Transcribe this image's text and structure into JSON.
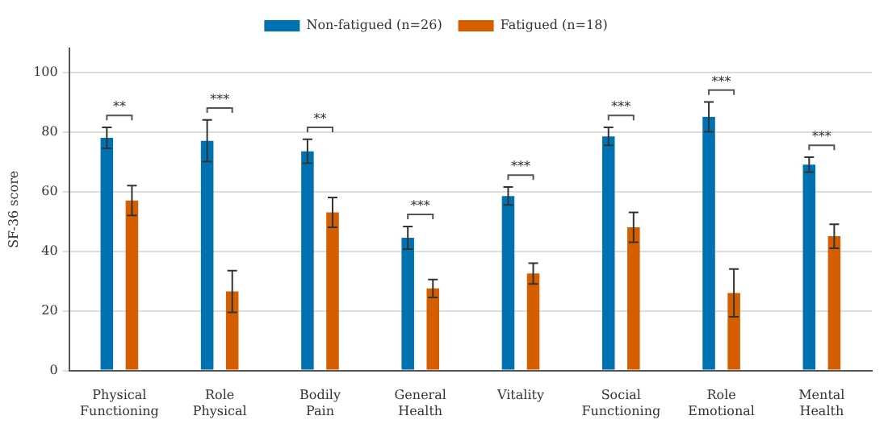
{
  "chart_data": {
    "type": "bar",
    "ylabel": "SF-36 score",
    "categories": [
      "Physical\nFunctioning",
      "Role\nPhysical",
      "Bodily\nPain",
      "General\nHealth",
      "Vitality",
      "Social\nFunctioning",
      "Role\nEmotional",
      "Mental\nHealth"
    ],
    "series": [
      {
        "name": "Non-fatigued (n=26)",
        "color": "#0072b2",
        "values": [
          78,
          77,
          73.5,
          44.5,
          58.5,
          78.5,
          85,
          69
        ],
        "errors": [
          3.5,
          7,
          4,
          3.8,
          3,
          3,
          5,
          2.5
        ]
      },
      {
        "name": "Fatigued (n=18)",
        "color": "#d55e00",
        "values": [
          57,
          26.5,
          53,
          27.5,
          32.5,
          48,
          26,
          45
        ],
        "errors": [
          5,
          7,
          5,
          3,
          3.5,
          5,
          8,
          4
        ]
      }
    ],
    "ylim": [
      0,
      108
    ],
    "yticks": [
      0,
      20,
      40,
      60,
      80,
      100
    ],
    "grid": "y",
    "legend": "top",
    "annotations": [
      "**",
      "***",
      "**",
      "***",
      "***",
      "***",
      "***",
      "***"
    ]
  }
}
